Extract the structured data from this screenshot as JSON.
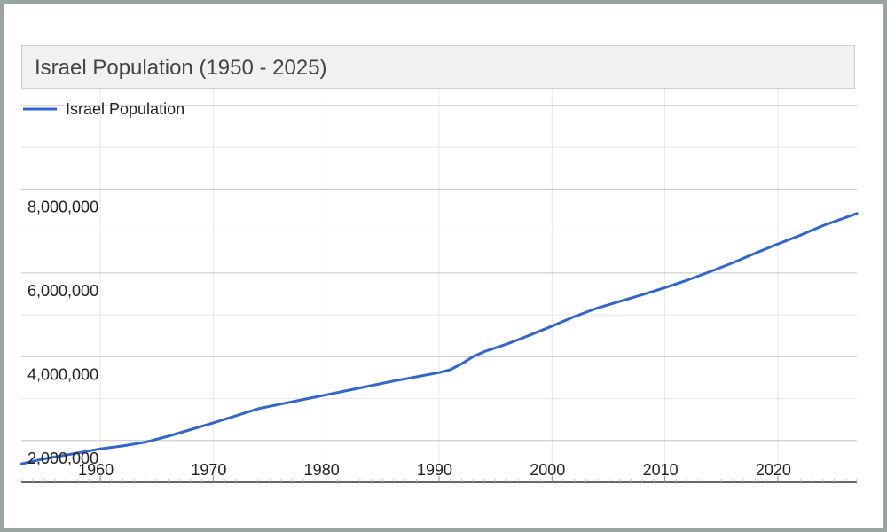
{
  "chart_data": {
    "type": "line",
    "title": "Israel Population (1950 - 2025)",
    "xlabel": "",
    "ylabel": "",
    "xlim": [
      1953,
      2027
    ],
    "ylim": [
      1000000,
      10400000
    ],
    "x_ticks": [
      1960,
      1970,
      1980,
      1990,
      2000,
      2010,
      2020
    ],
    "y_ticks": [
      2000000,
      4000000,
      6000000,
      8000000
    ],
    "y_tick_labels": [
      "2,000,000",
      "4,000,000",
      "6,000,000",
      "8,000,000"
    ],
    "grid": true,
    "legend": "top-left",
    "series": [
      {
        "name": "Israel Population",
        "color": "#3366cc",
        "x": [
          1953,
          1955,
          1958,
          1960,
          1962,
          1964,
          1966,
          1968,
          1970,
          1972,
          1974,
          1976,
          1978,
          1980,
          1982,
          1984,
          1986,
          1988,
          1990,
          1991,
          1992,
          1993,
          1994,
          1996,
          1998,
          2000,
          2002,
          2004,
          2006,
          2008,
          2010,
          2012,
          2014,
          2016,
          2018,
          2020,
          2022,
          2024,
          2027
        ],
        "values": [
          1440000,
          1560000,
          1700000,
          1800000,
          1870000,
          1960000,
          2100000,
          2260000,
          2420000,
          2590000,
          2760000,
          2870000,
          2980000,
          3090000,
          3200000,
          3310000,
          3420000,
          3520000,
          3620000,
          3690000,
          3830000,
          4000000,
          4120000,
          4300000,
          4510000,
          4730000,
          4960000,
          5160000,
          5320000,
          5480000,
          5650000,
          5830000,
          6030000,
          6240000,
          6470000,
          6690000,
          6900000,
          7130000,
          7420000
        ]
      }
    ]
  }
}
